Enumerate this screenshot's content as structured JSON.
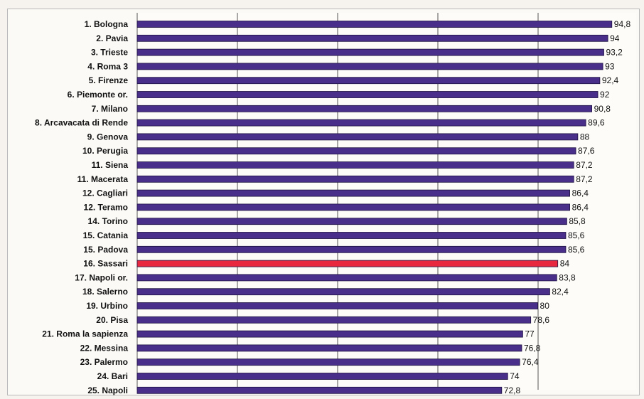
{
  "chart_data": {
    "type": "bar",
    "orientation": "horizontal",
    "categories": [
      "1. Bologna",
      "2. Pavia",
      "3. Trieste",
      "4. Roma 3",
      "5. Firenze",
      "6. Piemonte or.",
      "7. Milano",
      "8. Arcavacata di Rende",
      "9. Genova",
      "10. Perugia",
      "11. Siena",
      "11. Macerata",
      "12. Cagliari",
      "12. Teramo",
      "14. Torino",
      "15. Catania",
      "15. Padova",
      "16. Sassari",
      "17. Napoli or.",
      "18. Salerno",
      "19. Urbino",
      "20. Pisa",
      "21. Roma la sapienza",
      "22. Messina",
      "23. Palermo",
      "24. Bari",
      "25. Napoli"
    ],
    "values": [
      94.8,
      94,
      93.2,
      93,
      92.4,
      92,
      90.8,
      89.6,
      88,
      87.6,
      87.2,
      87.2,
      86.4,
      86.4,
      85.8,
      85.6,
      85.6,
      84,
      83.8,
      82.4,
      80,
      78.6,
      77,
      76.8,
      76.4,
      74,
      72.8
    ],
    "value_labels": [
      "94,8",
      "94",
      "93,2",
      "93",
      "92,4",
      "92",
      "90,8",
      "89,6",
      "88",
      "87,6",
      "87,2",
      "87,2",
      "86,4",
      "86,4",
      "85,8",
      "85,6",
      "85,6",
      "84",
      "83,8",
      "82,4",
      "80",
      "78,6",
      "77",
      "76,8",
      "76,4",
      "74",
      "72,8"
    ],
    "highlight_index": 17,
    "colors": {
      "bar": "#4a2f8a",
      "highlight": "#e8283f",
      "grid": "#555555"
    },
    "xlim": [
      0,
      100
    ],
    "grid": true,
    "title": "",
    "xlabel": "",
    "ylabel": ""
  }
}
